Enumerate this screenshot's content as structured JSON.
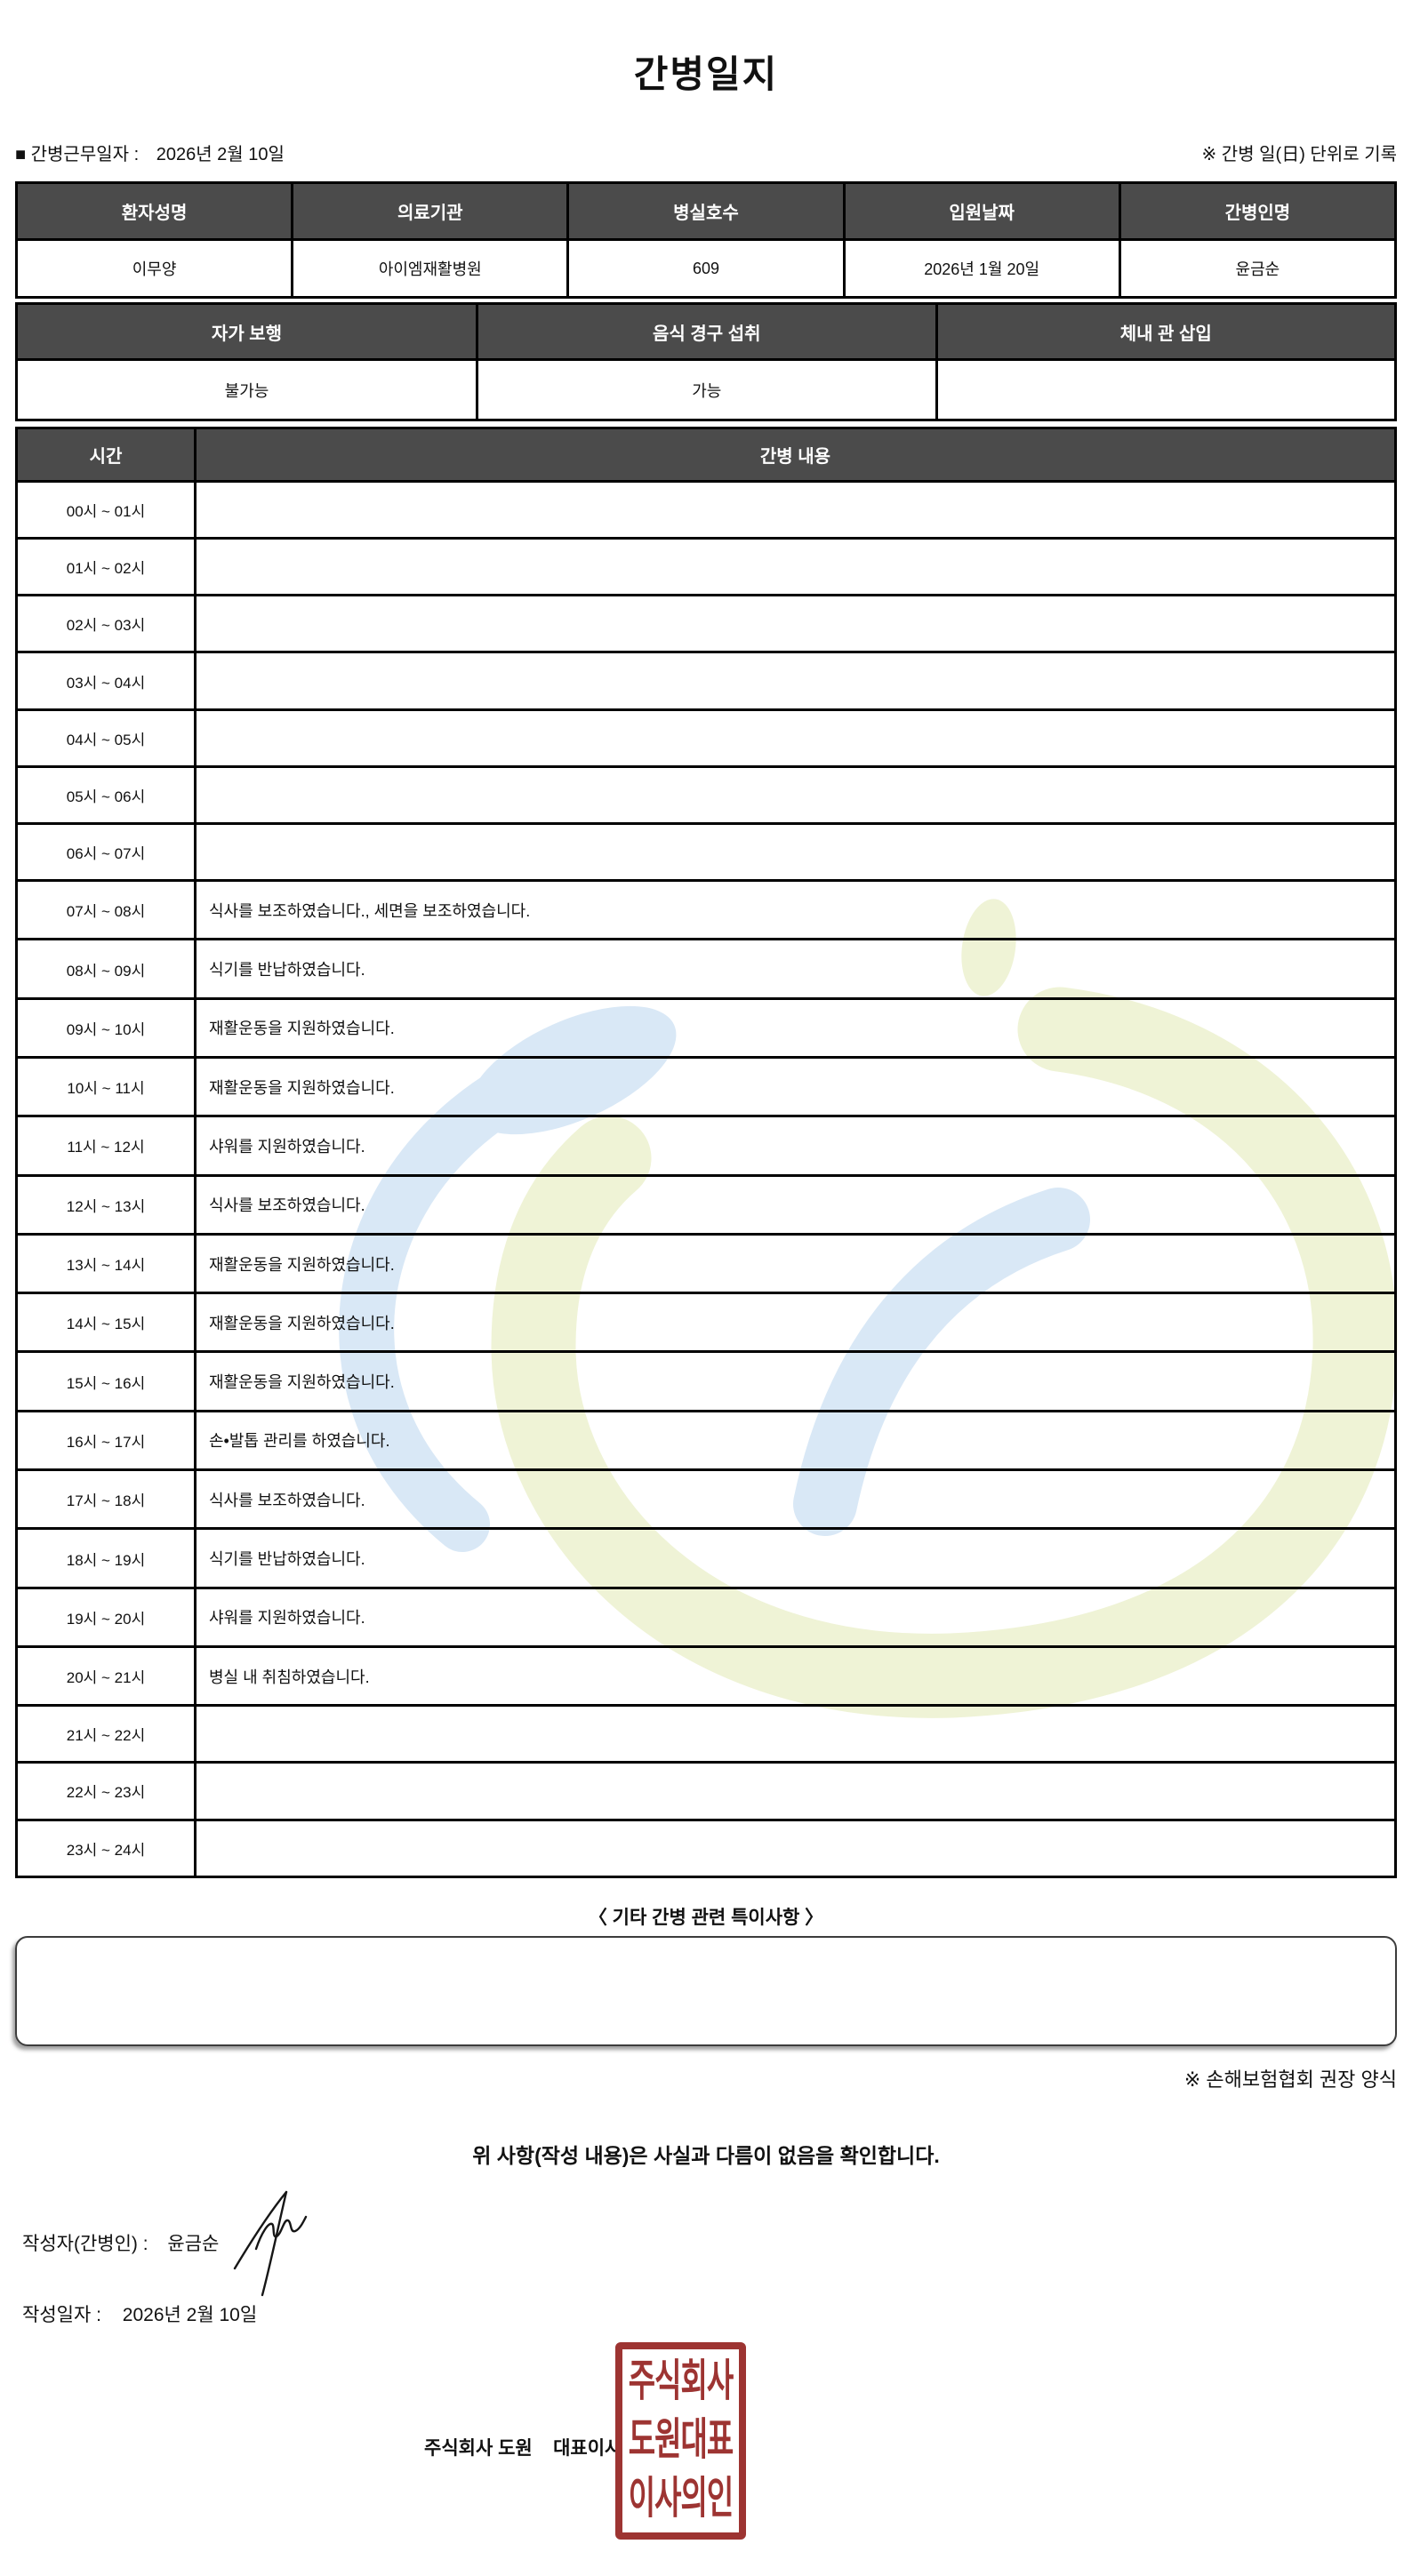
{
  "title": "간병일지",
  "meta": {
    "work_date_label": "■ 간병근무일자  :",
    "work_date_value": "2026년 2월 10일",
    "unit_note": "※ 간병 일(日) 단위로 기록"
  },
  "patient_table": {
    "headers": [
      "환자성명",
      "의료기관",
      "병실호수",
      "입원날짜",
      "간병인명"
    ],
    "values": [
      "이무양",
      "아이엠재활병원",
      "609",
      "2026년 1월 20일",
      "윤금순"
    ]
  },
  "status_table": {
    "headers": [
      "자가 보행",
      "음식 경구 섭취",
      "체내 관 삽입"
    ],
    "values": [
      "불가능",
      "가능",
      ""
    ]
  },
  "log_table": {
    "time_header": "시간",
    "content_header": "간병 내용",
    "rows": [
      {
        "time": "00시 ~ 01시",
        "content": ""
      },
      {
        "time": "01시 ~ 02시",
        "content": ""
      },
      {
        "time": "02시 ~ 03시",
        "content": ""
      },
      {
        "time": "03시 ~ 04시",
        "content": ""
      },
      {
        "time": "04시 ~ 05시",
        "content": ""
      },
      {
        "time": "05시 ~ 06시",
        "content": ""
      },
      {
        "time": "06시 ~ 07시",
        "content": ""
      },
      {
        "time": "07시 ~ 08시",
        "content": "식사를 보조하였습니다., 세면을 보조하였습니다."
      },
      {
        "time": "08시 ~ 09시",
        "content": "식기를 반납하였습니다."
      },
      {
        "time": "09시 ~ 10시",
        "content": "재활운동을 지원하였습니다."
      },
      {
        "time": "10시 ~ 11시",
        "content": "재활운동을 지원하였습니다."
      },
      {
        "time": "11시 ~ 12시",
        "content": "샤워를 지원하였습니다."
      },
      {
        "time": "12시 ~ 13시",
        "content": "식사를 보조하였습니다."
      },
      {
        "time": "13시 ~ 14시",
        "content": "재활운동을 지원하였습니다."
      },
      {
        "time": "14시 ~ 15시",
        "content": "재활운동을 지원하였습니다."
      },
      {
        "time": "15시 ~ 16시",
        "content": "재활운동을 지원하였습니다."
      },
      {
        "time": "16시 ~ 17시",
        "content": "손•발톱 관리를 하였습니다."
      },
      {
        "time": "17시 ~ 18시",
        "content": "식사를 보조하였습니다."
      },
      {
        "time": "18시 ~ 19시",
        "content": "식기를 반납하였습니다."
      },
      {
        "time": "19시 ~ 20시",
        "content": "샤워를 지원하였습니다."
      },
      {
        "time": "20시 ~ 21시",
        "content": "병실 내 취침하였습니다."
      },
      {
        "time": "21시 ~ 22시",
        "content": ""
      },
      {
        "time": "22시 ~ 23시",
        "content": ""
      },
      {
        "time": "23시 ~ 24시",
        "content": ""
      }
    ]
  },
  "notes_section": {
    "heading": "〈 기타 간병 관련 특이사항 〉",
    "content": ""
  },
  "form_note": "※ 손해보험협회 권장 양식",
  "confirmation": "위 사항(작성 내용)은 사실과 다름이 없음을 확인합니다.",
  "signoff": {
    "writer_label": "작성자(간병인) :",
    "writer_name": "윤금순",
    "date_label": "작성일자 :",
    "date_value": "2026년 2월 10일",
    "company_line": "주식회사 도원    대표이사"
  },
  "stamp": {
    "lines": [
      "주식회사",
      "도원대표",
      "이사의인"
    ],
    "color": "#9d3432"
  },
  "colors": {
    "table_header_bg": "#4b4b4b",
    "table_border": "#000000",
    "stamp_red": "#9d3432",
    "watermark_green": "#eff3d6",
    "watermark_blue": "#d9e8f6"
  }
}
